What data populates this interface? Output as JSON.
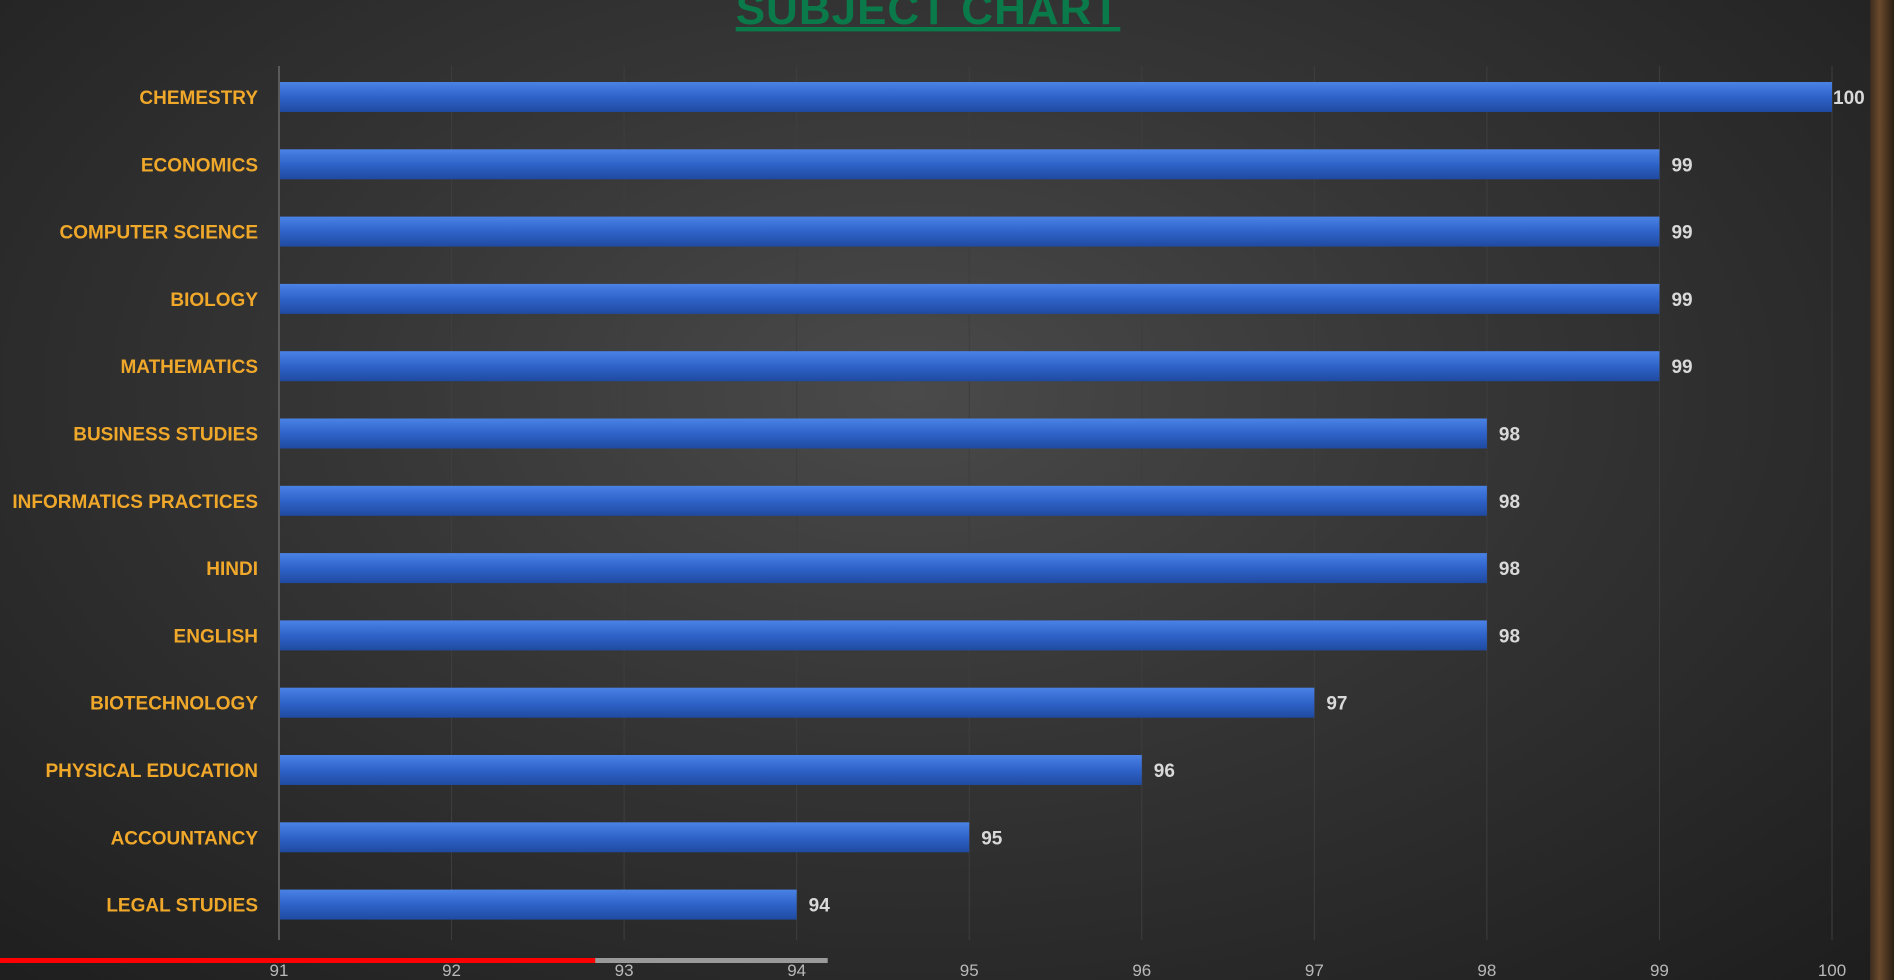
{
  "chart_data": {
    "type": "bar",
    "orientation": "horizontal",
    "title": "SUBJECT CHART",
    "categories": [
      "CHEMESTRY",
      "ECONOMICS",
      "COMPUTER SCIENCE",
      "BIOLOGY",
      "MATHEMATICS",
      "BUSINESS STUDIES",
      "INFORMATICS PRACTICES",
      "HINDI",
      "ENGLISH",
      "BIOTECHNOLOGY",
      "PHYSICAL EDUCATION",
      "ACCOUNTANCY",
      "LEGAL STUDIES"
    ],
    "values": [
      100,
      99,
      99,
      99,
      99,
      98,
      98,
      98,
      98,
      97,
      96,
      95,
      94
    ],
    "xlim": [
      91,
      100
    ],
    "xticks": [
      "91",
      "92",
      "93",
      "94",
      "95",
      "96",
      "97",
      "98",
      "99",
      "100"
    ],
    "xlabel": "",
    "ylabel": "",
    "grid": true,
    "legend": "none",
    "colors": {
      "bar": "#2f63c9",
      "category_label": "#f0a82a",
      "value_label": "#d9d9d9",
      "title": "#0b7a4a"
    }
  },
  "video_progress": {
    "played_fraction": 0.32,
    "buffered_fraction": 0.445
  }
}
